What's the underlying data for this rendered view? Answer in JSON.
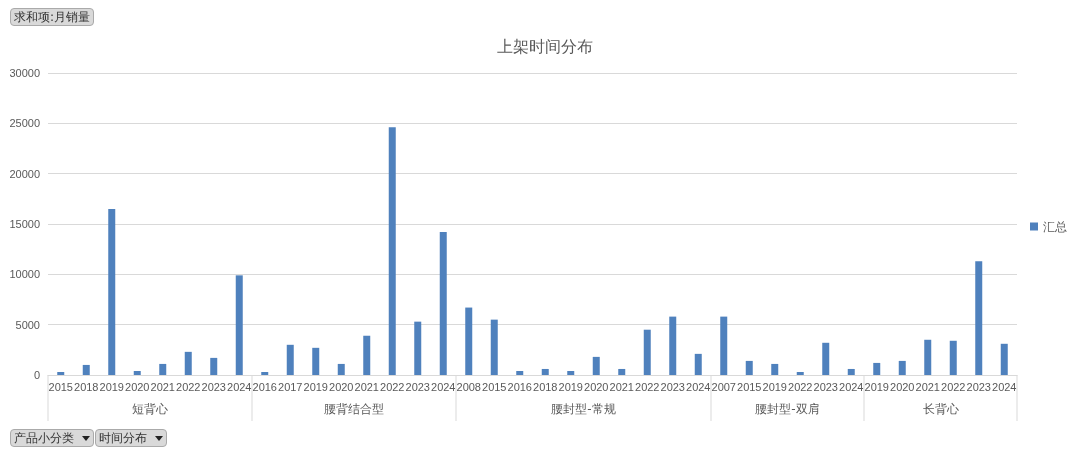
{
  "chart_data": {
    "type": "bar",
    "title": "上架时间分布",
    "ylabel": "求和项:月销量",
    "categories": [
      "2015",
      "2018",
      "2019",
      "2020",
      "2021",
      "2022",
      "2023",
      "2024",
      "2016",
      "2017",
      "2019",
      "2020",
      "2021",
      "2022",
      "2023",
      "2024",
      "2008",
      "2015",
      "2016",
      "2018",
      "2019",
      "2020",
      "2021",
      "2022",
      "2023",
      "2024",
      "2007",
      "2015",
      "2019",
      "2022",
      "2023",
      "2024",
      "2019",
      "2020",
      "2021",
      "2022",
      "2023",
      "2024"
    ],
    "series": [
      {
        "name": "汇总",
        "color": "#4f81bd",
        "values": [
          300,
          1000,
          16500,
          400,
          1100,
          2300,
          1700,
          9900,
          300,
          3000,
          2700,
          1100,
          3900,
          24600,
          5300,
          14200,
          6700,
          5500,
          400,
          600,
          400,
          1800,
          600,
          4500,
          5800,
          2100,
          5800,
          1400,
          1100,
          300,
          3200,
          600,
          1200,
          1400,
          3500,
          3400,
          11300,
          3100
        ]
      }
    ],
    "annotations": [
      "短背心",
      "腰背结合型",
      "腰封型-常规",
      "腰封型-双肩",
      "长背心",
      "产品小分类",
      "时间分布"
    ],
    "ylim": [
      0,
      30000
    ],
    "yticks": [
      0,
      5000,
      10000,
      15000,
      20000,
      25000,
      30000
    ],
    "grid": "y",
    "legend": "right"
  }
}
